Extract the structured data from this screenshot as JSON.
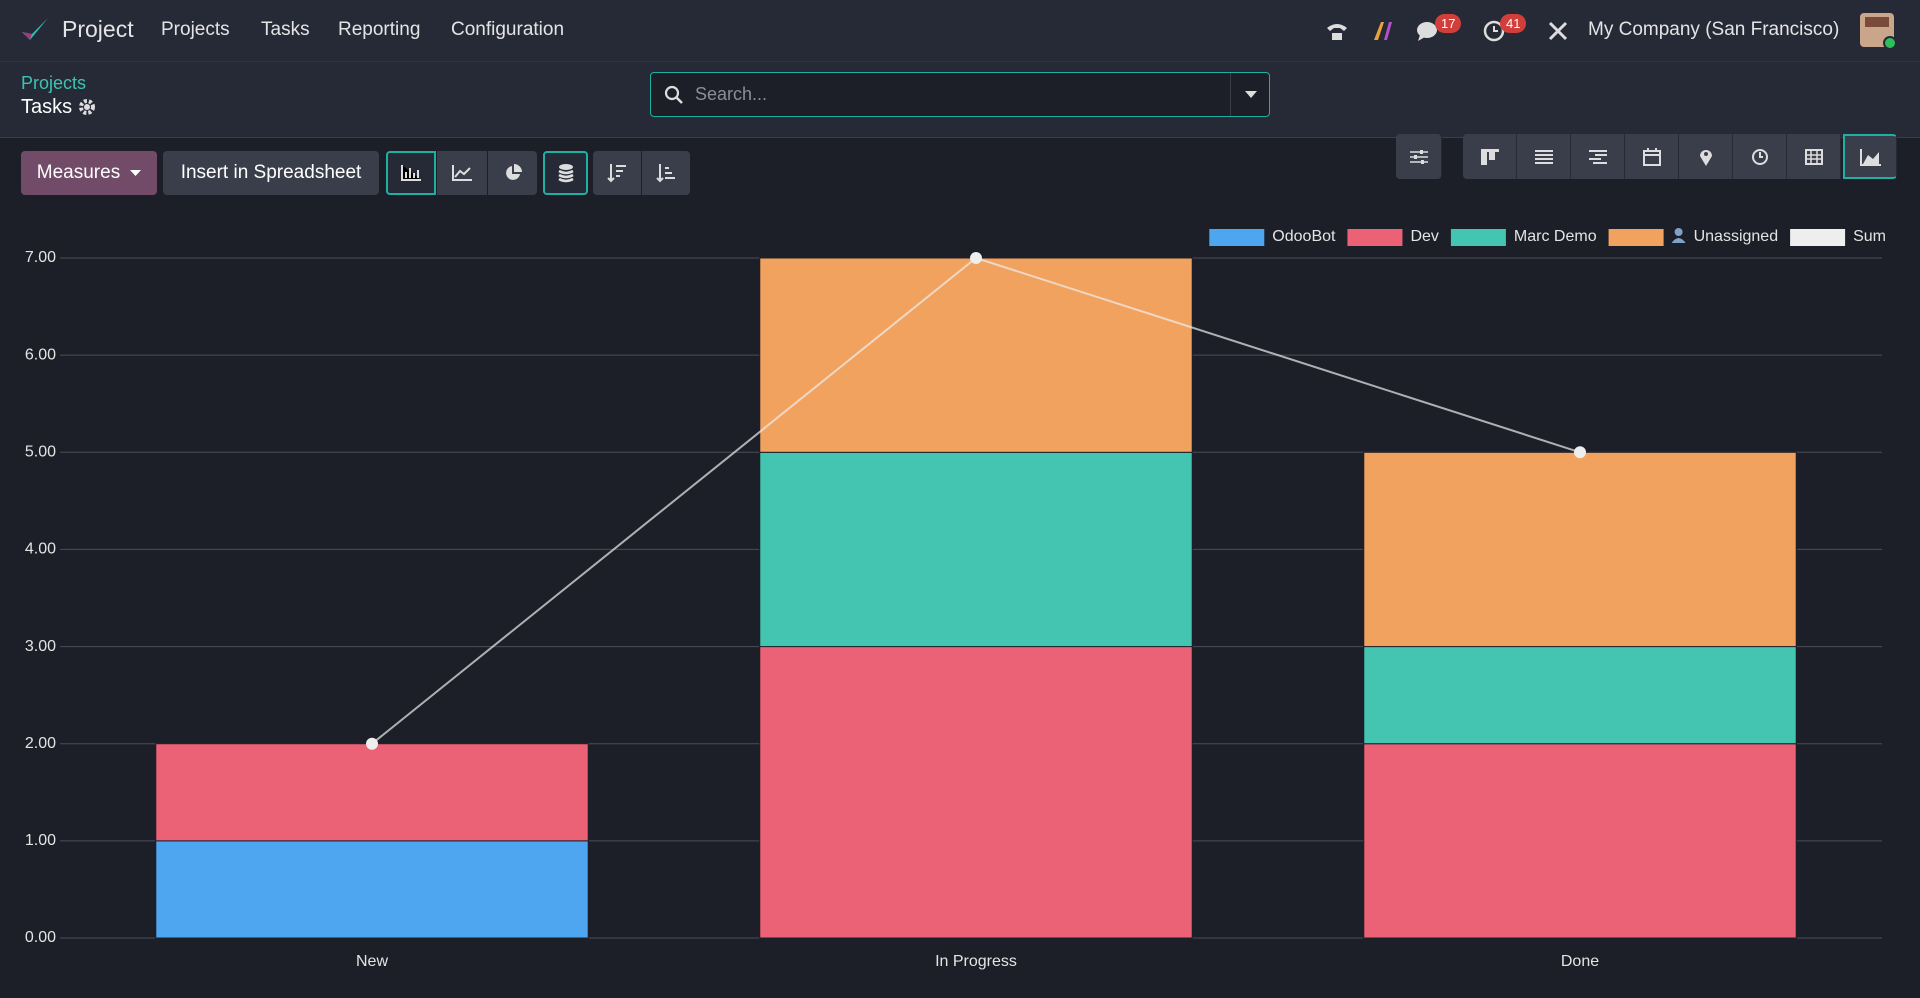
{
  "navbar": {
    "app": "Project",
    "menu": [
      "Projects",
      "Tasks",
      "Reporting",
      "Configuration"
    ],
    "badges": [
      17,
      41
    ],
    "company": "My Company (San Francisco)"
  },
  "breadcrumb": {
    "parent": "Projects",
    "current": "Tasks"
  },
  "search": {
    "placeholder": "Search..."
  },
  "toolbar": {
    "measures": "Measures",
    "insert": "Insert in Spreadsheet"
  },
  "chart_data": {
    "type": "bar",
    "stacked": true,
    "grid": true,
    "legend": "top-right",
    "categories": [
      "New",
      "In Progress",
      "Done"
    ],
    "series": [
      {
        "name": "OdooBot",
        "color": "#4ea5f0",
        "values": [
          1,
          0,
          0
        ]
      },
      {
        "name": "Dev",
        "color": "#eb6175",
        "values": [
          1,
          3,
          2
        ]
      },
      {
        "name": "Marc Demo",
        "color": "#43c5b1",
        "values": [
          0,
          2,
          1
        ]
      },
      {
        "name": "Unassigned",
        "color": "#f2a25f",
        "icon": "person",
        "values": [
          0,
          2,
          2
        ]
      },
      {
        "name": "Sum",
        "color": "#eeeeee",
        "type": "line",
        "values": [
          2,
          7,
          5
        ]
      }
    ],
    "ylim": [
      0,
      7
    ],
    "yticks": [
      {
        "value": 0,
        "label": "0.00"
      },
      {
        "value": 1,
        "label": "1.00"
      },
      {
        "value": 2,
        "label": "2.00"
      },
      {
        "value": 3,
        "label": "3.00"
      },
      {
        "value": 4,
        "label": "4.00"
      },
      {
        "value": 5,
        "label": "5.00"
      },
      {
        "value": 6,
        "label": "6.00"
      },
      {
        "value": 7,
        "label": "7.00"
      }
    ]
  }
}
